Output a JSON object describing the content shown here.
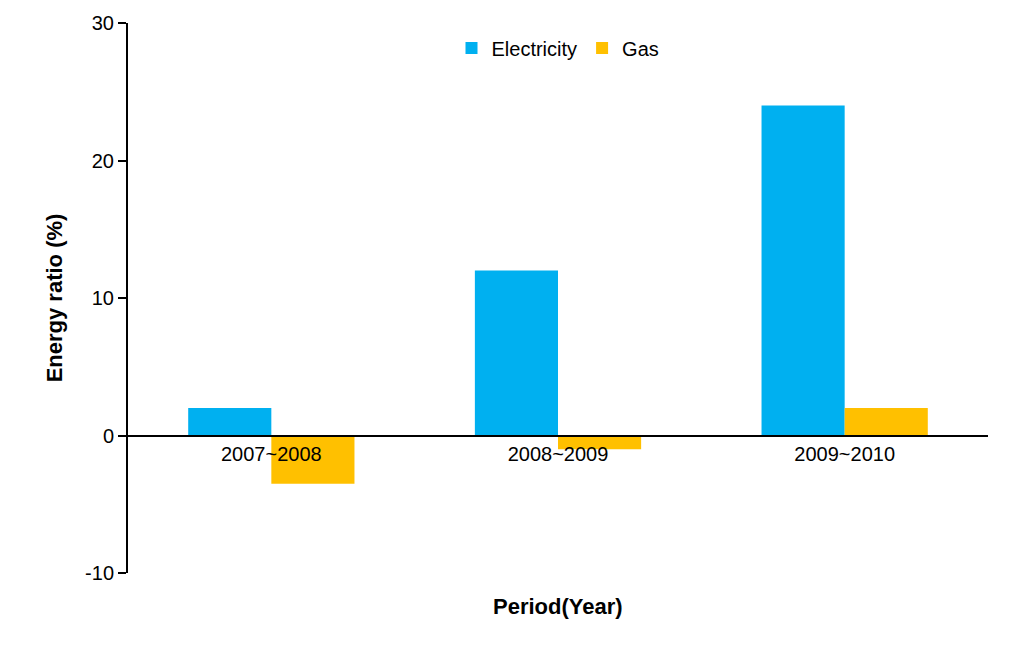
{
  "chart_data": {
    "type": "bar",
    "x_label": "Period(Year)",
    "y_label": "Energy ratio (%)",
    "categories": [
      "2007~2008",
      "2008~2009",
      "2009~2010"
    ],
    "series": [
      {
        "name": "Electricity",
        "color": "#00B0F0",
        "values": [
          2,
          12,
          24
        ]
      },
      {
        "name": "Gas",
        "color": "#FFC000",
        "values": [
          -3.5,
          -1,
          2
        ]
      }
    ],
    "ylim": [
      -10,
      30
    ],
    "yticks": [
      -10,
      0,
      10,
      20,
      30
    ],
    "grid": false,
    "legend": "top"
  }
}
